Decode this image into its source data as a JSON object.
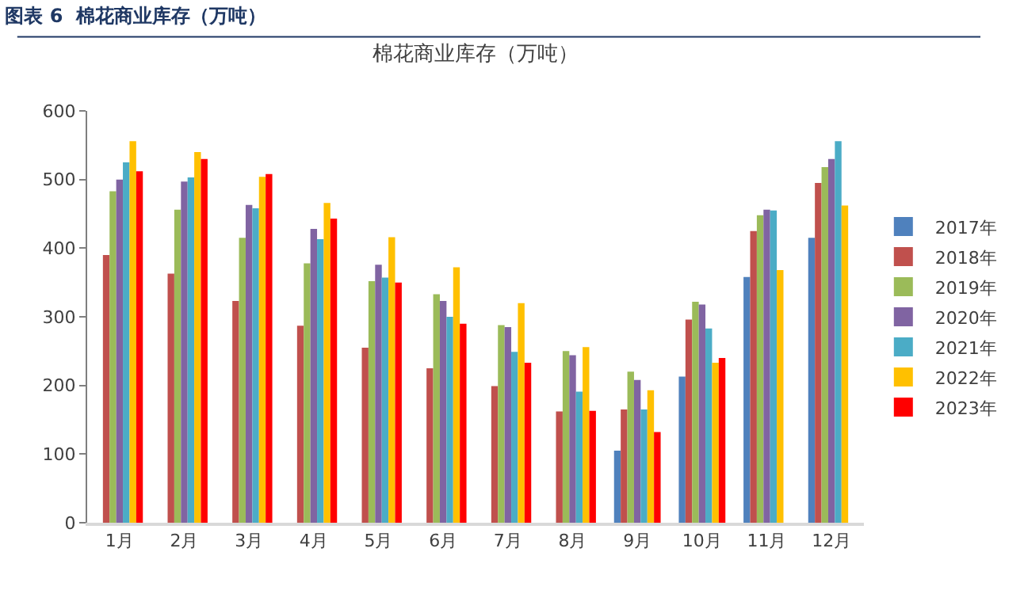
{
  "chart_data": {
    "type": "bar",
    "title": "图表 6  棉花商业库存（万吨）",
    "subtitle": "棉花商业库存（万吨）",
    "categories": [
      "1月",
      "2月",
      "3月",
      "4月",
      "5月",
      "6月",
      "7月",
      "8月",
      "9月",
      "10月",
      "11月",
      "12月"
    ],
    "series": [
      {
        "name": "2017年",
        "color": "#4f81bd",
        "values": [
          null,
          null,
          null,
          null,
          null,
          null,
          null,
          null,
          105,
          213,
          358,
          415
        ]
      },
      {
        "name": "2018年",
        "color": "#c0504d",
        "values": [
          390,
          363,
          323,
          287,
          255,
          225,
          199,
          162,
          165,
          296,
          425,
          495
        ]
      },
      {
        "name": "2019年",
        "color": "#9bbb59",
        "values": [
          483,
          456,
          415,
          378,
          352,
          333,
          288,
          250,
          220,
          322,
          448,
          518
        ]
      },
      {
        "name": "2020年",
        "color": "#8064a2",
        "values": [
          500,
          497,
          463,
          428,
          376,
          323,
          285,
          244,
          208,
          318,
          456,
          530
        ]
      },
      {
        "name": "2021年",
        "color": "#4bacc6",
        "values": [
          525,
          503,
          458,
          413,
          357,
          300,
          249,
          191,
          165,
          283,
          455,
          556
        ]
      },
      {
        "name": "2022年",
        "color": "#ffc000",
        "values": [
          556,
          540,
          504,
          466,
          416,
          372,
          320,
          256,
          193,
          233,
          368,
          462
        ]
      },
      {
        "name": "2023年",
        "color": "#ff0000",
        "values": [
          512,
          530,
          508,
          443,
          350,
          290,
          233,
          163,
          132,
          240,
          null,
          null
        ]
      }
    ],
    "ylim": [
      0,
      600
    ],
    "yticks": [
      0,
      100,
      200,
      300,
      400,
      500,
      600
    ],
    "grid": false,
    "legend": "right"
  }
}
